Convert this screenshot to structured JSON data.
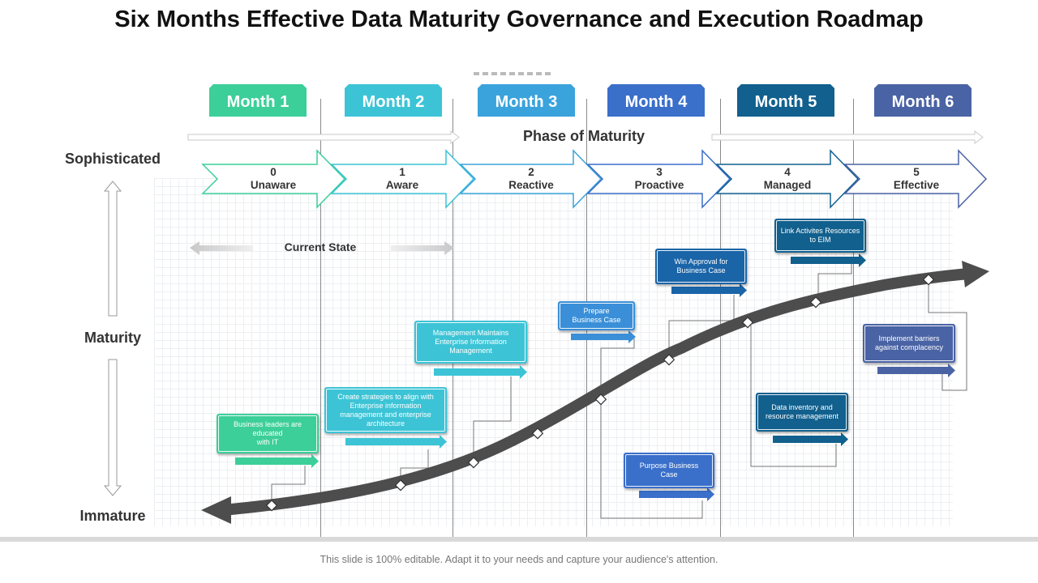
{
  "title": "Six Months Effective Data Maturity Governance and Execution Roadmap",
  "months": [
    {
      "label": "Month 1",
      "color": "#3ccf99"
    },
    {
      "label": "Month 2",
      "color": "#3cc4d6"
    },
    {
      "label": "Month 3",
      "color": "#3aa3dc"
    },
    {
      "label": "Month 4",
      "color": "#3a6fca"
    },
    {
      "label": "Month 5",
      "color": "#11608e"
    },
    {
      "label": "Month 6",
      "color": "#4a63a4"
    }
  ],
  "phase_label": "Phase of Maturity",
  "axis_labels": {
    "top": "Sophisticated",
    "middle": "Maturity",
    "bottom": "Immature"
  },
  "stages": [
    {
      "num": "0",
      "name": "Unaware",
      "color": "#3ccf99"
    },
    {
      "num": "1",
      "name": "Aware",
      "color": "#3cc4d6"
    },
    {
      "num": "2",
      "name": "Reactive",
      "color": "#3aa3dc"
    },
    {
      "num": "3",
      "name": "Proactive",
      "color": "#3a6fca"
    },
    {
      "num": "4",
      "name": "Managed",
      "color": "#11608e"
    },
    {
      "num": "5",
      "name": "Effective",
      "color": "#4a63a4"
    }
  ],
  "current_state": "Current State",
  "cards": [
    {
      "text": "Business leaders are\neducated\nwith IT",
      "color": "#3ccf99"
    },
    {
      "text": "Create strategies to align with\nEnterprise information\nmanagement and enterprise\narchitecture",
      "color": "#3cc4d6"
    },
    {
      "text": "Management Maintains\nEnterprise Information\nManagement",
      "color": "#3cc4d6"
    },
    {
      "text": "Prepare\nBusiness Case",
      "color": "#3a8fd8"
    },
    {
      "text": "Purpose Business\nCase",
      "color": "#3a6fca"
    },
    {
      "text": "Win Approval for\nBusiness Case",
      "color": "#1a64a8"
    },
    {
      "text": "Link Activites Resources\nto EIM",
      "color": "#11608e"
    },
    {
      "text": "Data inventory and\nresource management",
      "color": "#11608e"
    },
    {
      "text": "Implement barriers\nagainst complacency",
      "color": "#4a63a4"
    }
  ],
  "footer": "This slide is 100% editable. Adapt it to your needs and capture your audience's attention."
}
